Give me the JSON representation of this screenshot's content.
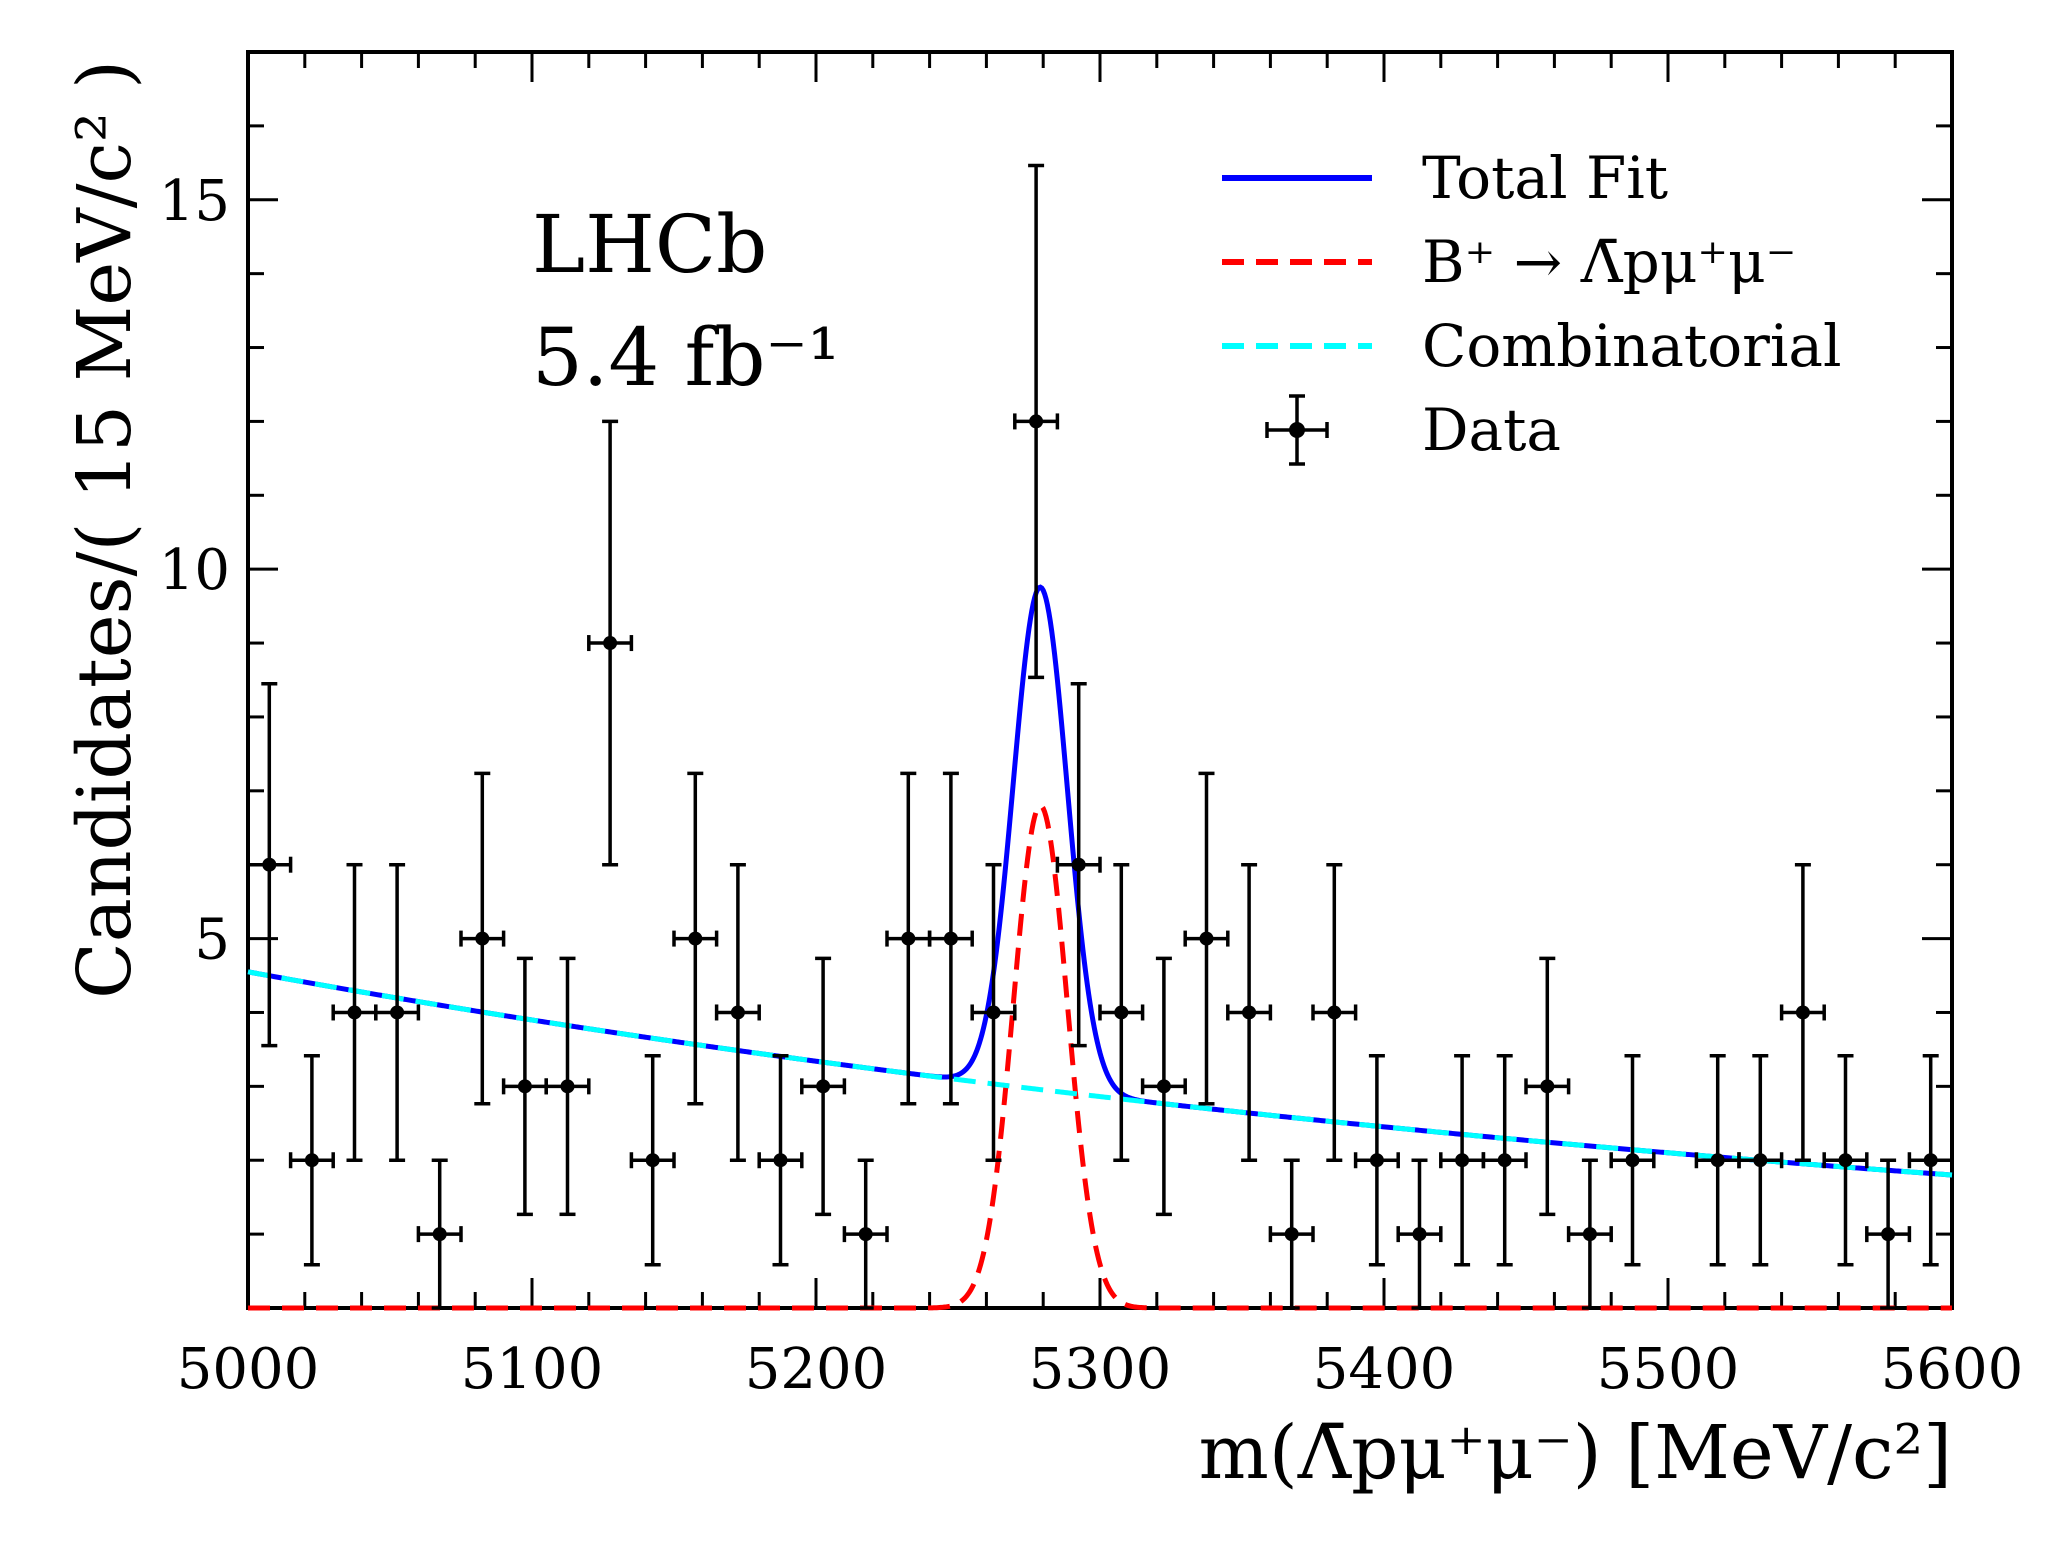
{
  "chart_data": {
    "type": "scatter",
    "experiment": "LHCb",
    "luminosity": "5.4 fb⁻¹",
    "xlabel": "m(Λ̄pμ⁺μ⁻) [MeV/c²]",
    "ylabel": "Candidates/( 15 MeV/c² )",
    "xlim": [
      5000,
      5600
    ],
    "ylim": [
      0,
      17
    ],
    "x_ticks": [
      5000,
      5100,
      5200,
      5300,
      5400,
      5500,
      5600
    ],
    "y_ticks": [
      5,
      10,
      15
    ],
    "legend_position": "top-right",
    "legend": [
      {
        "label": "Total Fit",
        "style": "solid",
        "color": "#0000ff"
      },
      {
        "label": "B⁺ → Λ̄pμ⁺μ⁻",
        "style": "dashed",
        "color": "#ff0000"
      },
      {
        "label": "Combinatorial",
        "style": "dashed",
        "color": "#00ffff"
      },
      {
        "label": "Data",
        "style": "errorbar",
        "color": "#000000"
      }
    ],
    "data_points": {
      "x": [
        5007.5,
        5022.5,
        5037.5,
        5052.5,
        5067.5,
        5082.5,
        5097.5,
        5112.5,
        5127.5,
        5142.5,
        5157.5,
        5172.5,
        5187.5,
        5202.5,
        5217.5,
        5232.5,
        5247.5,
        5262.5,
        5277.5,
        5292.5,
        5307.5,
        5322.5,
        5337.5,
        5352.5,
        5367.5,
        5382.5,
        5397.5,
        5412.5,
        5427.5,
        5442.5,
        5457.5,
        5472.5,
        5487.5,
        5517.5,
        5532.5,
        5547.5,
        5562.5,
        5577.5,
        5592.5
      ],
      "y": [
        6,
        2,
        4,
        4,
        1,
        5,
        3,
        3,
        9,
        2,
        5,
        4,
        2,
        3,
        1,
        5,
        5,
        4,
        12,
        6,
        4,
        3,
        5,
        4,
        1,
        4,
        2,
        1,
        2,
        2,
        3,
        1,
        2,
        2,
        2,
        4,
        2,
        1,
        2
      ],
      "xerr": 7.5
    },
    "fit_model": {
      "combinatorial": {
        "at_5000": 4.55,
        "at_5600": 1.8
      },
      "signal": {
        "mean": 5279,
        "sigma": 9.5,
        "peak": 6.8
      }
    }
  }
}
